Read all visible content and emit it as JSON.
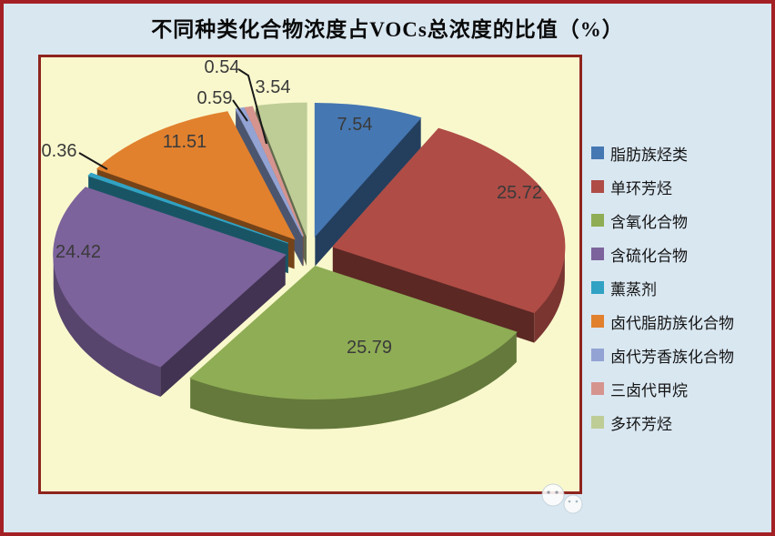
{
  "chart_data": {
    "type": "pie",
    "projection": "3d-exploded",
    "title": "不同种类化合物浓度占VOCs总浓度的比值（%）",
    "unit": "%",
    "total": 100,
    "start_angle_deg": 0,
    "direction": "clockwise",
    "legend_position": "right",
    "value_labels_shown": true,
    "value_label_decimals": 2,
    "slices": [
      {
        "label": "脂肪族烃类",
        "value": 7.54,
        "color": "#4577B2"
      },
      {
        "label": "单环芳烃",
        "value": 25.72,
        "color": "#AF4C46"
      },
      {
        "label": "含氧化合物",
        "value": 25.79,
        "color": "#8FAD55"
      },
      {
        "label": "含硫化合物",
        "value": 24.42,
        "color": "#7D639C"
      },
      {
        "label": "薰蒸剂",
        "value": 0.36,
        "color": "#31A2C3"
      },
      {
        "label": "卤代脂肪族化合物",
        "value": 11.51,
        "color": "#E1812E"
      },
      {
        "label": "卤代芳香族化合物",
        "value": 0.59,
        "color": "#93A3D3"
      },
      {
        "label": "三卤代甲烷",
        "value": 0.54,
        "color": "#D6948F"
      },
      {
        "label": "多环芳烃",
        "value": 3.54,
        "color": "#BECD96"
      }
    ]
  },
  "colors": {
    "outer_background": "#D9E7F1",
    "outer_border": "#A32025",
    "panel_background": "#F9F8CD",
    "panel_border": "#8E241E",
    "title_text": "#0A0A0A",
    "legend_text": "#141414",
    "label_text": "#3A3A3A",
    "leader_line": "#1A1A1A"
  },
  "watermark": {
    "icon": "cloud-mascot-icon"
  }
}
